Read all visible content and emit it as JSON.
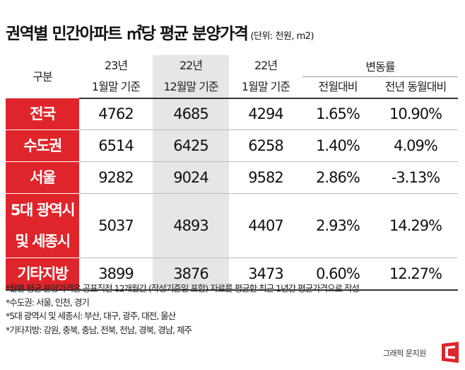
{
  "header": {
    "title": "권역별 민간아파트 ㎡당 평균 분양가격",
    "unit": "(단위: 천원, m2)"
  },
  "table": {
    "corner": "구분",
    "columns": [
      {
        "line1": "23년",
        "line2": "1월말 기준"
      },
      {
        "line1": "22년",
        "line2": "12월말 기준"
      },
      {
        "line1": "22년",
        "line2": "1월말 기준"
      }
    ],
    "change_group": "변동률",
    "change_columns": [
      "전월대비",
      "전년 동월대비"
    ],
    "rows": [
      {
        "region": "전국",
        "region2": "",
        "v1": "4762",
        "v2": "4685",
        "v3": "4294",
        "mom": "1.65%",
        "yoy": "10.90%"
      },
      {
        "region": "수도권",
        "region2": "",
        "v1": "6514",
        "v2": "6425",
        "v3": "6258",
        "mom": "1.40%",
        "yoy": "4.09%"
      },
      {
        "region": "서울",
        "region2": "",
        "v1": "9282",
        "v2": "9024",
        "v3": "9582",
        "mom": "2.86%",
        "yoy": "-3.13%"
      },
      {
        "region": "5대 광역시",
        "region2": "및 세종시",
        "v1": "5037",
        "v2": "4893",
        "v3": "4407",
        "mom": "2.93%",
        "yoy": "14.29%"
      },
      {
        "region": "기타지방",
        "region2": "",
        "v1": "3899",
        "v2": "3876",
        "v3": "3473",
        "mom": "0.60%",
        "yoy": "12.27%"
      }
    ]
  },
  "notes": [
    "*월별 평균 분양가격은 공표직전 12개월간 (작성기준일 포함) 자료를 평균한 최근 1년간 평균가격으로 작성",
    "*수도권: 서울, 인천, 경기",
    "*5대 광역시 및 세종시: 부산, 대구, 광주, 대전, 울산",
    "*기타지방: 강원, 충북, 충남, 전북, 전남, 경북, 경남, 제주"
  ],
  "credit": "그래픽 문지원",
  "colors": {
    "accent": "#e0242b",
    "shade": "#e6e6e6"
  },
  "icons": {
    "logo": "publisher-logo-icon"
  }
}
